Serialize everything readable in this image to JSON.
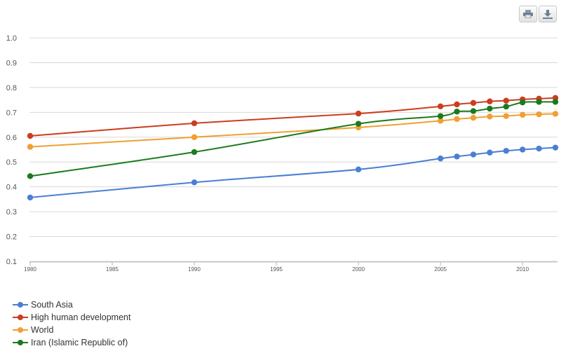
{
  "chart_data": {
    "type": "line",
    "x": [
      1980,
      1990,
      2000,
      2005,
      2006,
      2007,
      2008,
      2009,
      2010,
      2011,
      2012
    ],
    "xlim": [
      1980,
      2012
    ],
    "xticks": [
      "1980",
      "1985",
      "1990",
      "1995",
      "2000",
      "2005",
      "2010"
    ],
    "ylim": [
      0.1,
      1.0
    ],
    "yticks": [
      "0.1",
      "0.2",
      "0.3",
      "0.4",
      "0.5",
      "0.6",
      "0.7",
      "0.8",
      "0.9",
      "1.0"
    ],
    "grid": true,
    "legend_position": "bottom-left",
    "series": [
      {
        "name": "South Asia",
        "color": "#4a7fd4",
        "values": [
          0.357,
          0.418,
          0.47,
          0.514,
          0.522,
          0.53,
          0.538,
          0.545,
          0.55,
          0.554,
          0.558
        ]
      },
      {
        "name": "High human development",
        "color": "#cc3d1e",
        "values": [
          0.605,
          0.656,
          0.695,
          0.724,
          0.732,
          0.738,
          0.744,
          0.747,
          0.752,
          0.755,
          0.758
        ]
      },
      {
        "name": "World",
        "color": "#f0a030",
        "values": [
          0.561,
          0.6,
          0.639,
          0.666,
          0.673,
          0.678,
          0.683,
          0.685,
          0.69,
          0.692,
          0.694
        ]
      },
      {
        "name": "Iran (Islamic Republic of)",
        "color": "#1a7a1e",
        "values": [
          0.443,
          0.54,
          0.654,
          0.685,
          0.703,
          0.705,
          0.715,
          0.723,
          0.74,
          0.742,
          0.742
        ]
      }
    ]
  },
  "toolbar": {
    "print_icon": "print-icon",
    "download_icon": "download-icon"
  }
}
